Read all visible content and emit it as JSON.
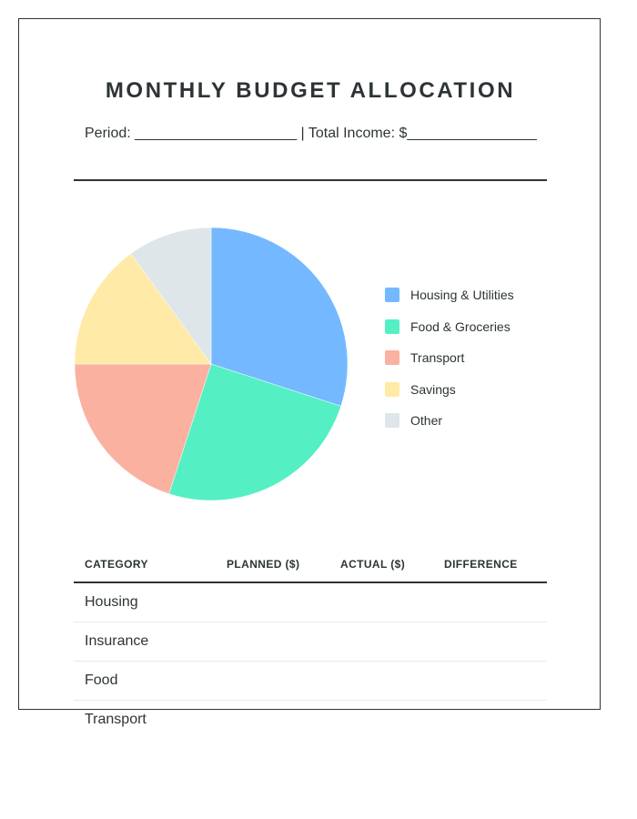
{
  "title": "MONTHLY BUDGET ALLOCATION",
  "meta": {
    "text": "Period: ____________________ | Total Income: $________________"
  },
  "chart_data": {
    "type": "pie",
    "title": "",
    "legend_position": "right",
    "slices": [
      {
        "label": "Housing & Utilities",
        "value": 30,
        "color": "#74b9ff"
      },
      {
        "label": "Food & Groceries",
        "value": 25,
        "color": "#55efc4"
      },
      {
        "label": "Transport",
        "value": 20,
        "color": "#fab1a0"
      },
      {
        "label": "Savings",
        "value": 15,
        "color": "#ffeaa7"
      },
      {
        "label": "Other",
        "value": 10,
        "color": "#dfe6e9"
      }
    ]
  },
  "table": {
    "headers": [
      "CATEGORY",
      "PLANNED ($)",
      "ACTUAL ($)",
      "DIFFERENCE"
    ],
    "rows": [
      {
        "category": "Housing"
      },
      {
        "category": "Insurance"
      },
      {
        "category": "Food"
      },
      {
        "category": "Transport"
      }
    ]
  }
}
